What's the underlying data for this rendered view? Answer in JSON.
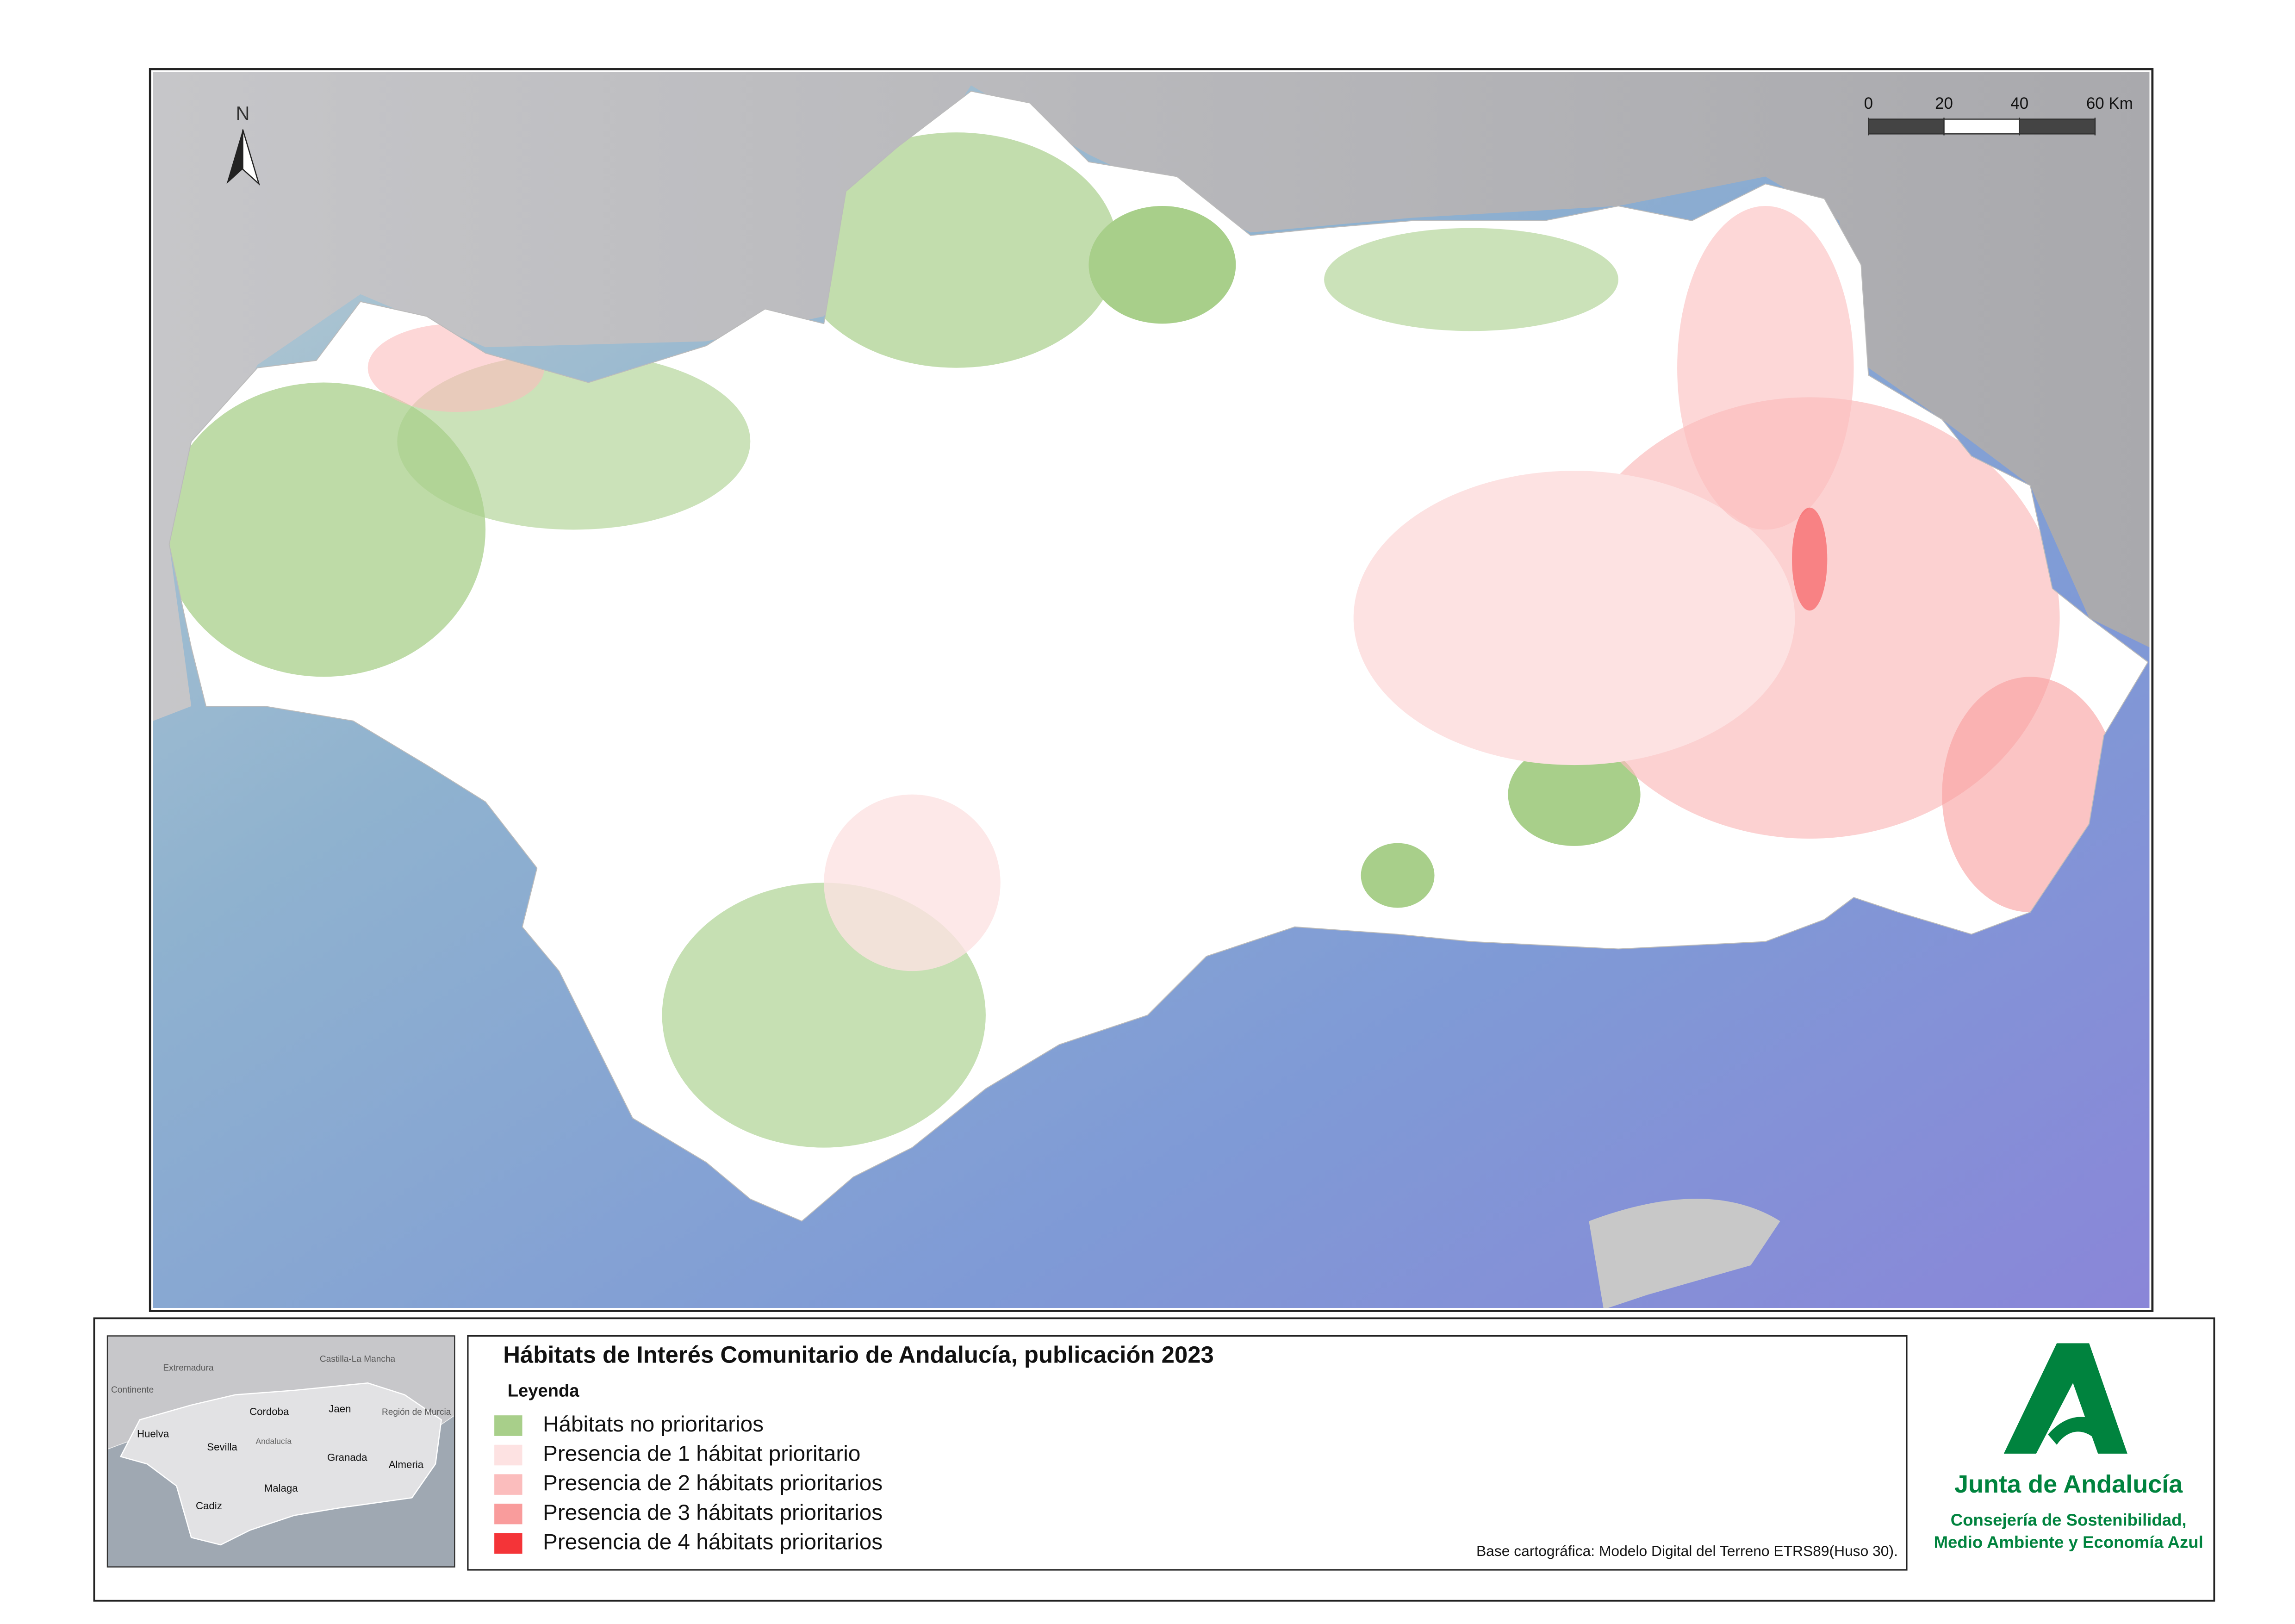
{
  "map_title": "Hábitats de Interés Comunitario de Andalucía, publicación 2023",
  "legend": {
    "title": "Leyenda",
    "items": [
      {
        "label": "Hábitats no prioritarios",
        "color": "#a8cf8a"
      },
      {
        "label": "Presencia de 1 hábitat prioritario",
        "color": "#fde2e2"
      },
      {
        "label": "Presencia de 2 hábitats prioritarios",
        "color": "#fbbdbd"
      },
      {
        "label": "Presencia de 3 hábitats prioritarios",
        "color": "#f99c9c"
      },
      {
        "label": "Presencia de 4 hábitats prioritarios",
        "color": "#f43438"
      }
    ]
  },
  "north_label": "N",
  "scale_bar": {
    "xlim": [
      0,
      60
    ],
    "xticks": [
      0,
      20,
      40,
      {
        "value": 60,
        "label": "60 Km"
      }
    ]
  },
  "inset": {
    "labels": [
      "Extremadura",
      "Castilla-La Mancha",
      "Continente",
      "Huelva",
      "Cordoba",
      "Jaen",
      "Región de Murcia",
      "Sevilla",
      "Andalucía",
      "Granada",
      "Almeria",
      "Cadiz",
      "Malaga"
    ]
  },
  "source": "Base cartográfica: Modelo Digital del Terreno ETRS89(Huso 30).",
  "logo": {
    "name": "Junta de Andalucía",
    "department": [
      "Consejería de Sostenibilidad,",
      "Medio Ambiente y Economía Azul"
    ]
  }
}
